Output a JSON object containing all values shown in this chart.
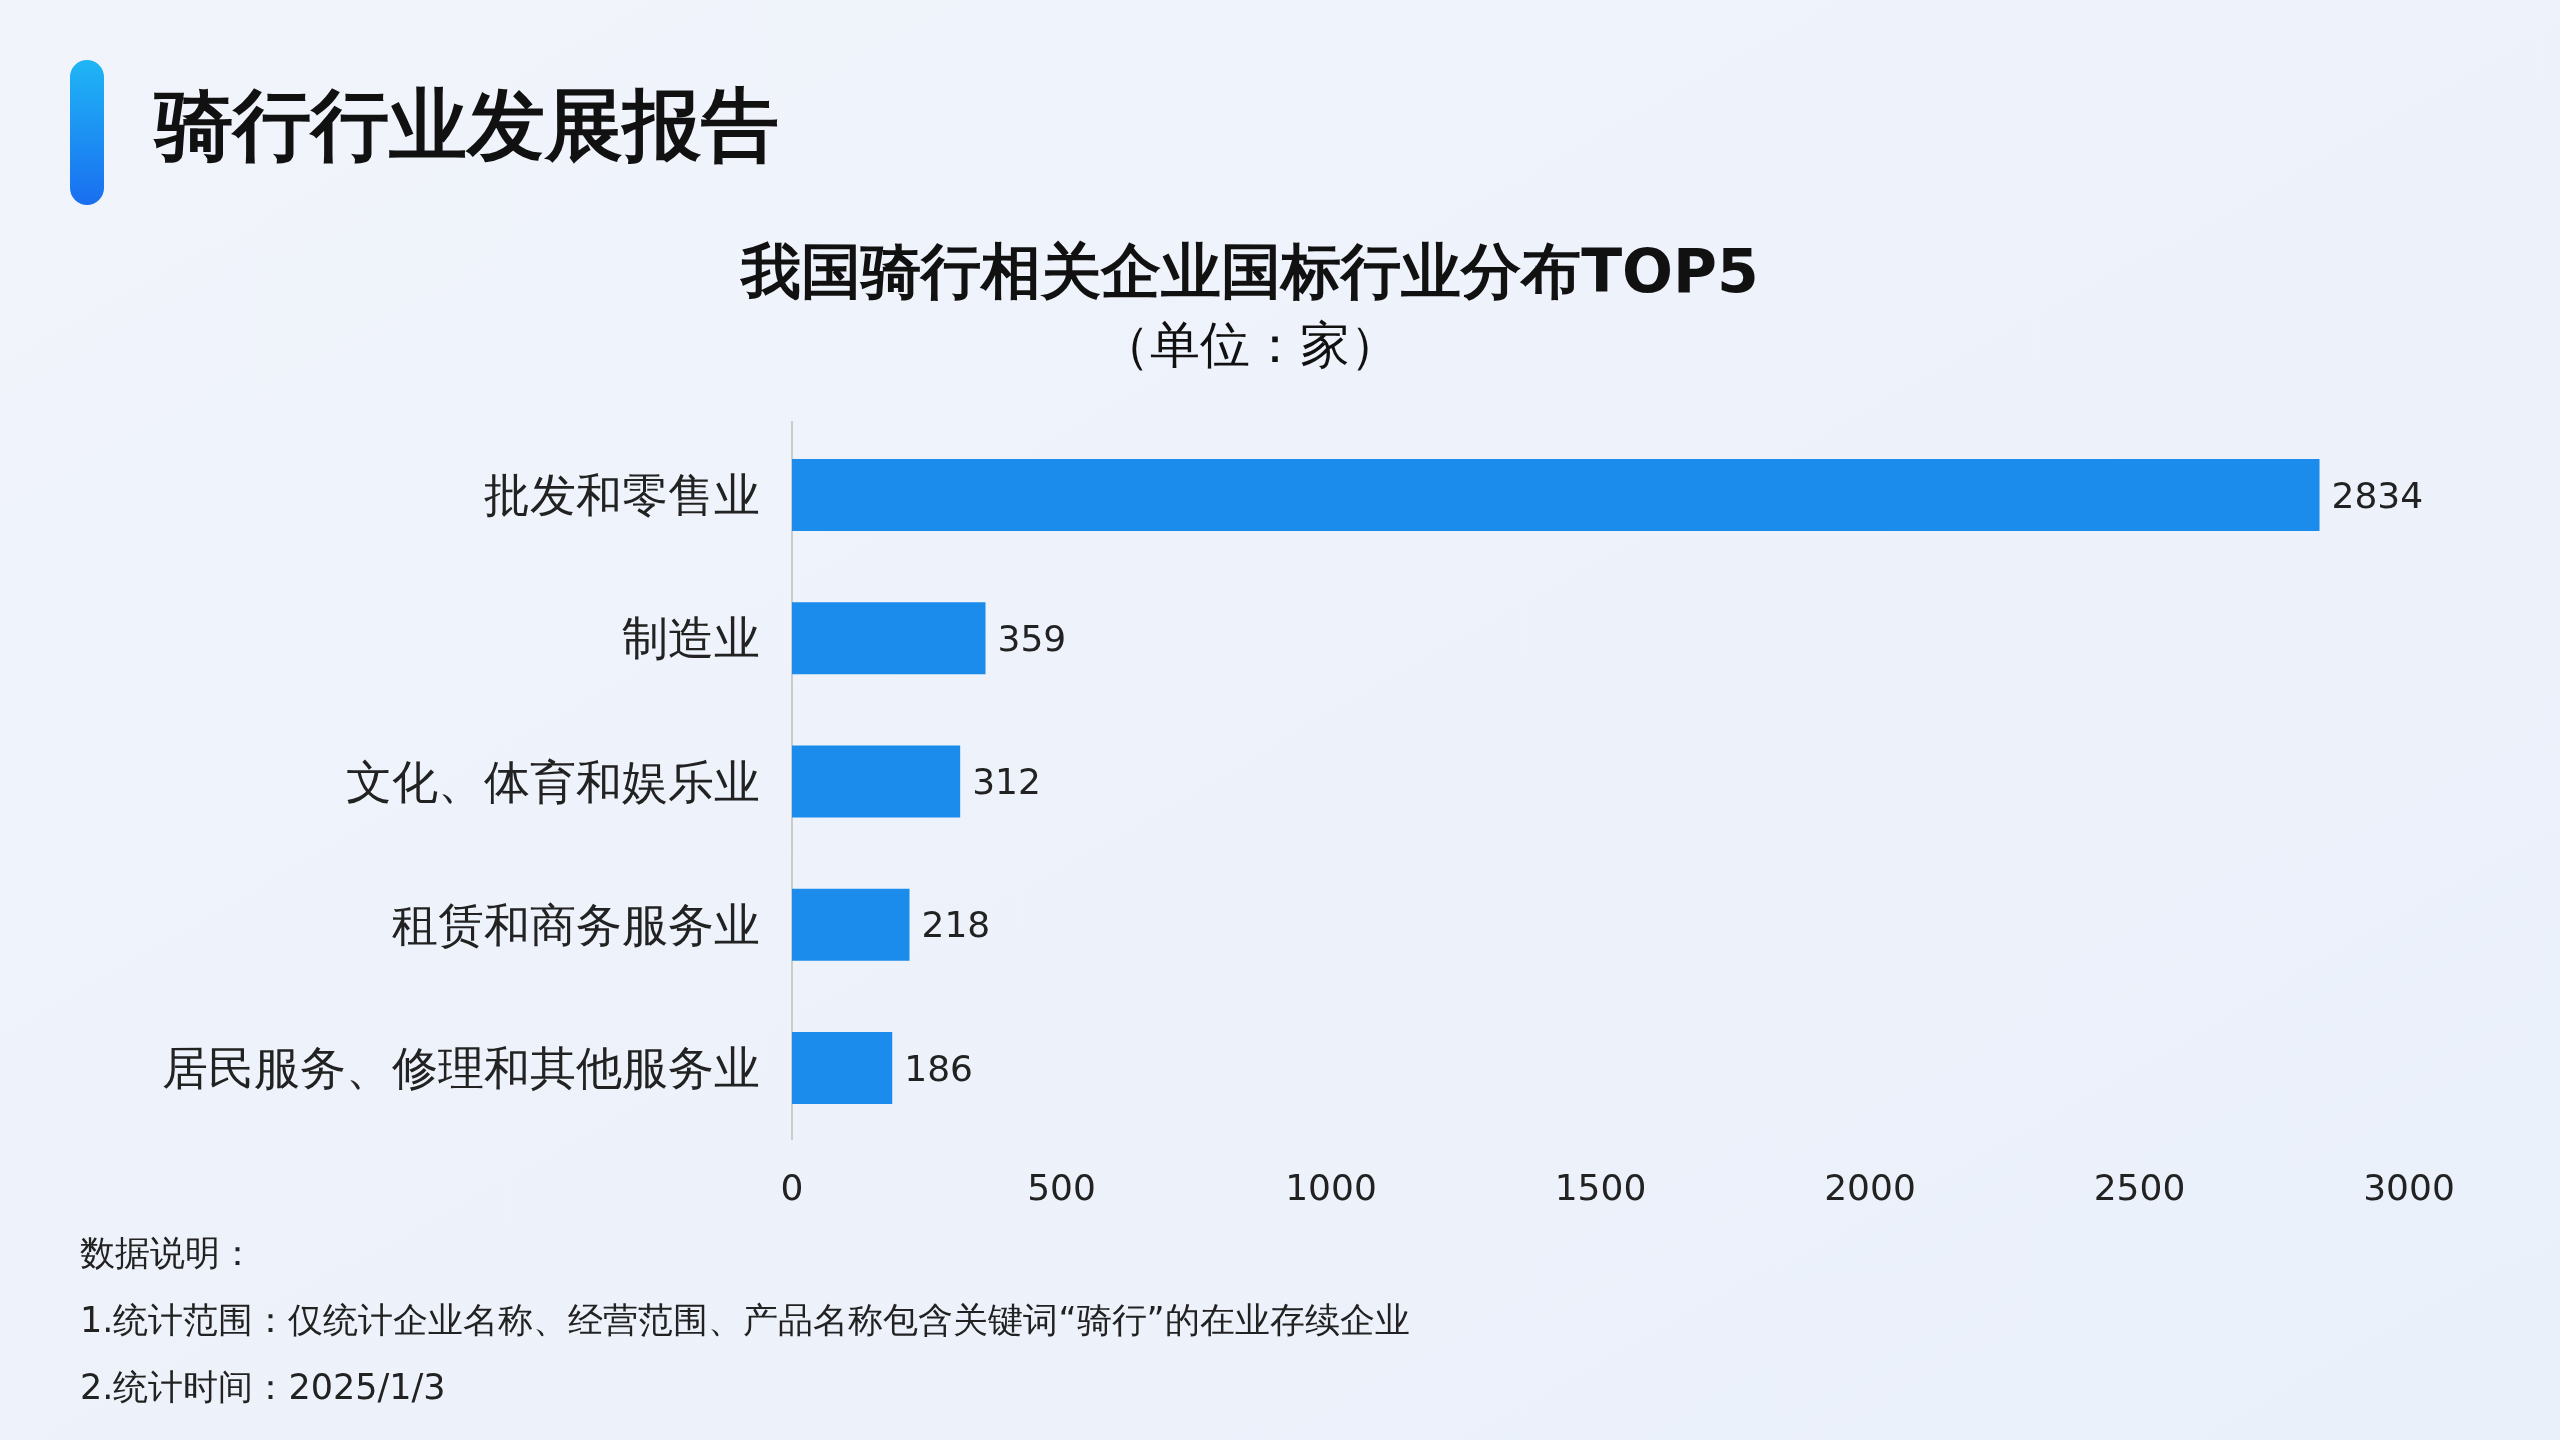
{
  "chart_data": {
    "type": "bar",
    "orientation": "horizontal",
    "title": "我国骑行相关企业国标行业分布TOP5",
    "subtitle": "（单位：家）",
    "categories": [
      "批发和零售业",
      "制造业",
      "文化、体育和娱乐业",
      "租赁和商务服务业",
      "居民服务、修理和其他服务业"
    ],
    "values": [
      2834,
      359,
      312,
      218,
      186
    ],
    "color": "#1b8cec",
    "data_labels": true,
    "xlim": [
      0,
      3000
    ],
    "xticks": [
      0,
      500,
      1000,
      1500,
      2000,
      2500,
      3000
    ],
    "grid": false,
    "annotations": [
      "骑行行业发展报告",
      "数据说明：",
      "1.统计范围：仅统计企业名称、经营范围、产品名称包含关键词“骑行”的在业存续企业",
      "2.统计时间：2025/1/3"
    ]
  }
}
